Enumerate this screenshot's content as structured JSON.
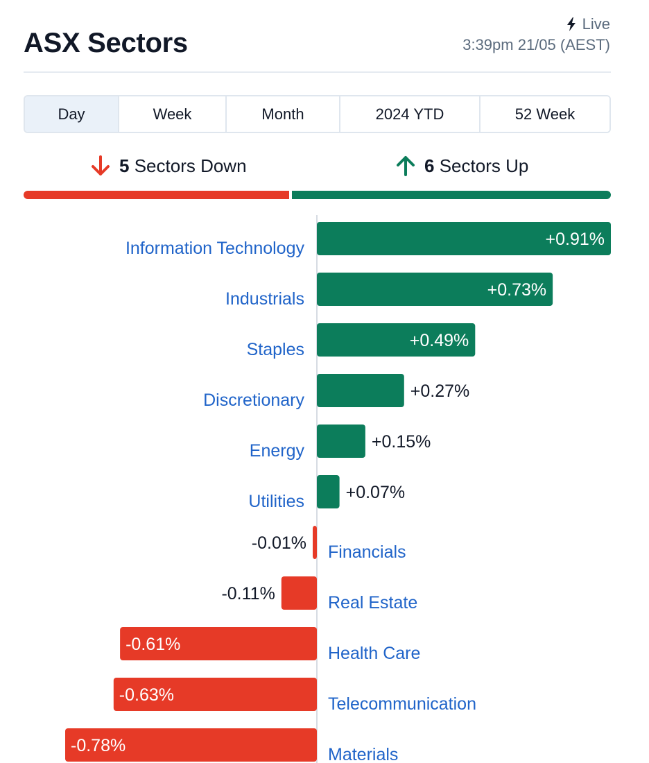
{
  "header": {
    "title": "ASX Sectors",
    "live_label": "Live",
    "timestamp": "3:39pm 21/05 (AEST)",
    "live_icon": "lightning-bolt-icon"
  },
  "tabs": [
    {
      "label": "Day",
      "active": true
    },
    {
      "label": "Week",
      "active": false
    },
    {
      "label": "Month",
      "active": false
    },
    {
      "label": "2024 YTD",
      "active": false
    },
    {
      "label": "52 Week",
      "active": false
    }
  ],
  "summary": {
    "down_count": "5",
    "down_label": "Sectors Down",
    "up_count": "6",
    "up_label": "Sectors Up",
    "down_icon": "arrow-down-icon",
    "up_icon": "arrow-up-icon"
  },
  "colors": {
    "up": "#0c7d5b",
    "down": "#e63a27",
    "label": "#2064c9",
    "up_text": "#ffffff",
    "down_text": "#ffffff",
    "outside_text": "#111827"
  },
  "chart_data": {
    "type": "bar",
    "orientation": "horizontal",
    "categories": [
      "Information Technology",
      "Industrials",
      "Staples",
      "Discretionary",
      "Energy",
      "Utilities",
      "Financials",
      "Real Estate",
      "Health Care",
      "Telecommunication",
      "Materials"
    ],
    "values": [
      0.91,
      0.73,
      0.49,
      0.27,
      0.15,
      0.07,
      -0.01,
      -0.11,
      -0.61,
      -0.63,
      -0.78
    ],
    "value_labels": [
      "+0.91%",
      "+0.73%",
      "+0.49%",
      "+0.27%",
      "+0.15%",
      "+0.07%",
      "-0.01%",
      "-0.11%",
      "-0.61%",
      "-0.63%",
      "-0.78%"
    ],
    "xlim": [
      -0.78,
      0.91
    ],
    "unit": "%"
  }
}
